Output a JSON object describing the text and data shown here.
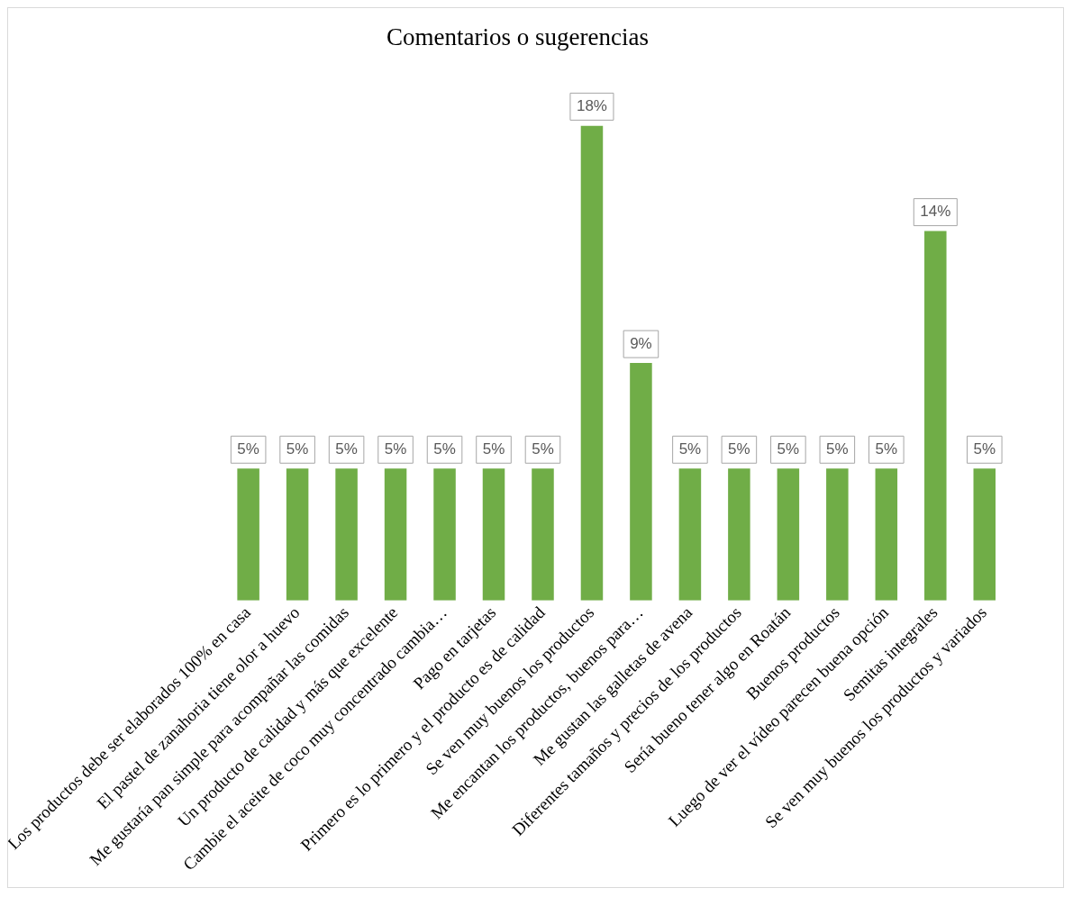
{
  "chart_data": {
    "type": "bar",
    "title": "Comentarios o sugerencias",
    "categories": [
      "Los productos debe ser elaborados 100% en casa",
      "El pastel de zanahoria tiene olor a huevo",
      "Me gustaría pan simple para acompañar las comidas",
      "Un producto de calidad y más que excelente",
      "Cambie el aceite de coco muy concentrado cambia…",
      "Pago en tarjetas",
      "Primero es lo primero y el producto es de calidad",
      "Se ven muy buenos los productos",
      "Me encantan los productos, buenos para…",
      "Me gustan las galletas de avena",
      "Diferentes tamaños y precios de los productos",
      "Sería bueno tener algo en Roatán",
      "Buenos productos",
      "Luego de ver el vídeo parecen buena opción",
      "Semitas integrales",
      "Se ven muy buenos los productos y variados"
    ],
    "values": [
      5,
      5,
      5,
      5,
      5,
      5,
      5,
      18,
      9,
      5,
      5,
      5,
      5,
      5,
      14,
      5
    ],
    "value_labels": [
      "5%",
      "5%",
      "5%",
      "5%",
      "5%",
      "5%",
      "5%",
      "18%",
      "9%",
      "5%",
      "5%",
      "5%",
      "5%",
      "5%",
      "14%",
      "5%"
    ],
    "color": "#70ad47",
    "grid": false,
    "legend": false
  }
}
